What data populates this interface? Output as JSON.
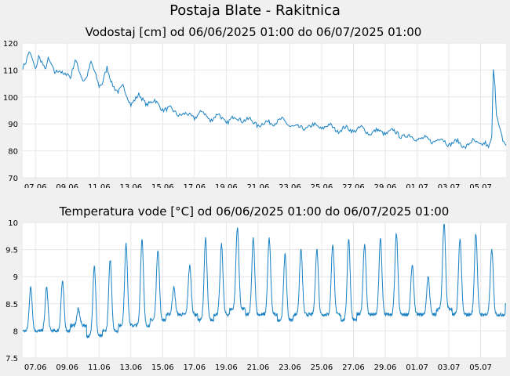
{
  "page_title": "Postaja Blate - Rakitnica",
  "line_color": "#1a82c4",
  "background": "#f0f0f0",
  "plot_background": "#ffffff",
  "chart_data": [
    {
      "type": "line",
      "title": "Vodostaj [cm] od 06/06/2025 01:00 do 06/07/2025 01:00",
      "xlabel": "",
      "ylabel": "",
      "ylim": [
        70,
        120
      ],
      "yticks": [
        70,
        80,
        90,
        100,
        110,
        120
      ],
      "ytick_labels": [
        "70",
        "80",
        "90",
        "100",
        "110",
        "120"
      ],
      "grid": true,
      "x_tick_labels": [
        "07.06",
        "09.06",
        "11.06",
        "13.06",
        "15.06",
        "17.06",
        "19.06",
        "21.06",
        "23.06",
        "25.06",
        "27.06",
        "29.06",
        "01.07",
        "03.07",
        "05.07"
      ],
      "x_unit": "days since 06.06.2025 00:00",
      "xlim": [
        0.2,
        30.6
      ],
      "x_ticks": [
        1,
        3,
        5,
        7,
        9,
        11,
        13,
        15,
        17,
        19,
        21,
        23,
        25,
        27,
        29
      ],
      "series": [
        {
          "name": "Vodostaj",
          "x": [
            0.2,
            0.4,
            0.6,
            0.8,
            1.0,
            1.2,
            1.4,
            1.6,
            1.8,
            2.0,
            2.2,
            2.5,
            2.8,
            3.0,
            3.2,
            3.5,
            3.8,
            4.0,
            4.2,
            4.5,
            4.8,
            5.0,
            5.2,
            5.5,
            5.8,
            6.0,
            6.2,
            6.5,
            7.0,
            7.5,
            8.0,
            8.5,
            9.0,
            9.5,
            10.0,
            10.5,
            11.0,
            11.5,
            12.0,
            12.5,
            13.0,
            13.5,
            14.0,
            14.5,
            15.0,
            15.5,
            16.0,
            16.5,
            17.0,
            17.5,
            18.0,
            18.5,
            19.0,
            19.5,
            20.0,
            20.5,
            21.0,
            21.5,
            22.0,
            22.5,
            23.0,
            23.5,
            24.0,
            24.5,
            25.0,
            25.5,
            26.0,
            26.5,
            27.0,
            27.5,
            28.0,
            28.5,
            29.0,
            29.3,
            29.5,
            29.7,
            29.8,
            29.9,
            30.0,
            30.2,
            30.4,
            30.6
          ],
          "y": [
            111,
            113,
            117,
            114,
            110,
            115,
            113,
            110,
            114,
            112,
            109,
            110,
            108,
            109,
            107,
            114,
            109,
            106,
            107,
            113,
            108,
            104,
            105,
            111,
            105,
            103,
            102,
            104,
            97,
            101,
            97,
            99,
            95,
            96,
            93,
            94,
            92,
            95,
            91,
            94,
            90,
            93,
            91,
            92,
            89,
            91,
            90,
            92,
            89,
            89,
            88,
            90,
            88,
            90,
            87,
            89,
            87,
            89,
            86,
            88,
            86,
            88,
            85,
            86,
            84,
            85,
            83,
            85,
            82,
            84,
            81,
            84,
            82,
            83,
            81,
            85,
            111,
            105,
            93,
            88,
            84,
            82
          ]
        }
      ]
    },
    {
      "type": "line",
      "title": "Temperatura vode [°C] od 06/06/2025 01:00 do 06/07/2025 01:00",
      "xlabel": "",
      "ylabel": "",
      "ylim": [
        7.5,
        10
      ],
      "yticks": [
        7.5,
        8,
        8.5,
        9,
        9.5,
        10
      ],
      "ytick_labels": [
        "7.5",
        "8",
        "8.5",
        "9",
        "9.5",
        "10"
      ],
      "grid": true,
      "x_tick_labels": [
        "07.06",
        "09.06",
        "11.06",
        "13.06",
        "15.06",
        "17.06",
        "19.06",
        "21.06",
        "23.06",
        "25.06",
        "27.06",
        "29.06",
        "01.07",
        "03.07",
        "05.07"
      ],
      "x_unit": "days since 06.06.2025 00:00",
      "xlim": [
        0.2,
        30.6
      ],
      "x_ticks": [
        1,
        3,
        5,
        7,
        9,
        11,
        13,
        15,
        17,
        19,
        21,
        23,
        25,
        27,
        29
      ],
      "series": [
        {
          "name": "Temperatura vode",
          "daily_peak_times": [
            0.7,
            1.7,
            2.7,
            3.7,
            4.7,
            5.7,
            6.7,
            7.7,
            8.7,
            9.7,
            10.7,
            11.7,
            12.7,
            13.7,
            14.7,
            15.7,
            16.7,
            17.7,
            18.7,
            19.7,
            20.7,
            21.7,
            22.7,
            23.7,
            24.7,
            25.7,
            26.7,
            27.7,
            28.7,
            29.7
          ],
          "daily_peak_values": [
            8.8,
            8.8,
            8.9,
            8.4,
            9.2,
            9.3,
            9.6,
            9.7,
            9.5,
            8.8,
            9.2,
            9.7,
            9.6,
            9.9,
            9.7,
            9.7,
            9.4,
            9.5,
            9.5,
            9.6,
            9.7,
            9.6,
            9.7,
            9.8,
            9.2,
            9.0,
            10.0,
            9.7,
            9.8,
            9.5
          ],
          "daily_min_values": [
            8.0,
            8.0,
            8.0,
            8.1,
            7.9,
            8.0,
            8.1,
            8.1,
            8.2,
            8.3,
            8.3,
            8.2,
            8.3,
            8.4,
            8.3,
            8.3,
            8.2,
            8.3,
            8.3,
            8.3,
            8.2,
            8.3,
            8.3,
            8.3,
            8.3,
            8.3,
            8.4,
            8.3,
            8.3,
            8.3
          ],
          "end_value": 8.5
        }
      ]
    }
  ]
}
